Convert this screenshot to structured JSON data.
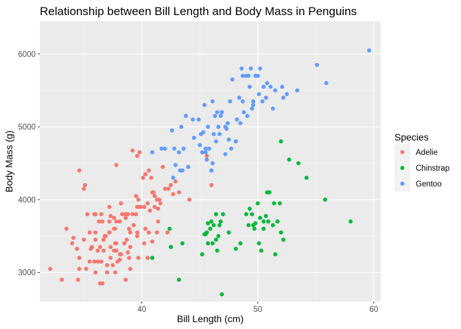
{
  "chart_data": {
    "type": "scatter",
    "title": "Relationship between Bill Length and Body Mass in Penguins",
    "xlabel": "Bill Length (cm)",
    "ylabel": "Body Mass (g)",
    "xlim": [
      31.2,
      60.6
    ],
    "ylim": [
      2600,
      6450
    ],
    "x_ticks": [
      40,
      50,
      60
    ],
    "y_ticks": [
      3000,
      4000,
      5000,
      6000
    ],
    "grid": true,
    "background": "#EBEBEB",
    "legend": {
      "title": "Species",
      "position": "right"
    },
    "series": [
      {
        "name": "Adelie",
        "color": "#F8766D",
        "points": [
          [
            32.1,
            3050
          ],
          [
            33.1,
            2900
          ],
          [
            33.5,
            3600
          ],
          [
            34.0,
            3400
          ],
          [
            34.1,
            3475
          ],
          [
            34.4,
            3325
          ],
          [
            34.5,
            2900
          ],
          [
            34.6,
            4400
          ],
          [
            34.6,
            3200
          ],
          [
            34.6,
            3050
          ],
          [
            35.0,
            3450
          ],
          [
            35.0,
            4150
          ],
          [
            35.1,
            4200
          ],
          [
            35.2,
            3050
          ],
          [
            35.3,
            3800
          ],
          [
            35.5,
            3150
          ],
          [
            35.5,
            3550
          ],
          [
            35.6,
            3325
          ],
          [
            35.7,
            3350
          ],
          [
            35.9,
            3800
          ],
          [
            35.9,
            3150
          ],
          [
            36.0,
            3450
          ],
          [
            36.0,
            3800
          ],
          [
            36.0,
            3000
          ],
          [
            36.0,
            3550
          ],
          [
            36.2,
            3300
          ],
          [
            36.2,
            3150
          ],
          [
            36.3,
            3700
          ],
          [
            36.4,
            2850
          ],
          [
            36.4,
            3350
          ],
          [
            36.5,
            3800
          ],
          [
            36.5,
            3150
          ],
          [
            36.6,
            2850
          ],
          [
            36.6,
            3700
          ],
          [
            36.7,
            3450
          ],
          [
            36.7,
            3300
          ],
          [
            36.8,
            3500
          ],
          [
            36.9,
            3500
          ],
          [
            37.0,
            3100
          ],
          [
            37.0,
            3000
          ],
          [
            37.2,
            3550
          ],
          [
            37.2,
            3700
          ],
          [
            37.2,
            3900
          ],
          [
            37.3,
            3775
          ],
          [
            37.3,
            3200
          ],
          [
            37.3,
            3350
          ],
          [
            37.5,
            3100
          ],
          [
            37.6,
            3600
          ],
          [
            37.6,
            3300
          ],
          [
            37.6,
            3750
          ],
          [
            37.7,
            3600
          ],
          [
            37.7,
            3000
          ],
          [
            37.7,
            3400
          ],
          [
            37.8,
            3700
          ],
          [
            37.8,
            4475
          ],
          [
            37.8,
            3400
          ],
          [
            37.8,
            3300
          ],
          [
            37.9,
            3150
          ],
          [
            38.1,
            3700
          ],
          [
            38.1,
            3175
          ],
          [
            38.1,
            3250
          ],
          [
            38.2,
            3950
          ],
          [
            38.2,
            3250
          ],
          [
            38.3,
            3800
          ],
          [
            38.5,
            3400
          ],
          [
            38.6,
            3800
          ],
          [
            38.6,
            3750
          ],
          [
            38.6,
            2900
          ],
          [
            38.7,
            3450
          ],
          [
            38.8,
            3800
          ],
          [
            38.8,
            3275
          ],
          [
            38.9,
            3600
          ],
          [
            38.9,
            3200
          ],
          [
            39.0,
            3550
          ],
          [
            39.0,
            3350
          ],
          [
            39.0,
            3050
          ],
          [
            39.2,
            4675
          ],
          [
            39.2,
            3800
          ],
          [
            39.3,
            3650
          ],
          [
            39.5,
            4050
          ],
          [
            39.5,
            3800
          ],
          [
            39.6,
            3500
          ],
          [
            39.6,
            3900
          ],
          [
            39.6,
            4600
          ],
          [
            39.6,
            3550
          ],
          [
            39.7,
            3900
          ],
          [
            39.7,
            4000
          ],
          [
            39.7,
            3200
          ],
          [
            39.8,
            4650
          ],
          [
            39.9,
            3900
          ],
          [
            40.1,
            4300
          ],
          [
            40.2,
            3400
          ],
          [
            40.2,
            3900
          ],
          [
            40.3,
            3600
          ],
          [
            40.3,
            4350
          ],
          [
            40.5,
            3950
          ],
          [
            40.5,
            3200
          ],
          [
            40.6,
            3550
          ],
          [
            40.6,
            4400
          ],
          [
            40.7,
            3850
          ],
          [
            40.8,
            4300
          ],
          [
            40.9,
            4100
          ],
          [
            40.9,
            3425
          ],
          [
            41.0,
            4100
          ],
          [
            41.1,
            4050
          ],
          [
            41.1,
            3900
          ],
          [
            41.3,
            3550
          ],
          [
            41.3,
            4000
          ],
          [
            41.4,
            3700
          ],
          [
            41.4,
            3875
          ],
          [
            41.5,
            4000
          ],
          [
            41.6,
            3950
          ],
          [
            41.8,
            4450
          ],
          [
            42.0,
            4150
          ],
          [
            42.2,
            3550
          ],
          [
            42.3,
            4150
          ],
          [
            42.5,
            4200
          ],
          [
            42.7,
            4075
          ],
          [
            42.9,
            4250
          ],
          [
            43.2,
            4100
          ],
          [
            44.1,
            4000
          ],
          [
            45.6,
            4600
          ],
          [
            46.0,
            4200
          ]
        ]
      },
      {
        "name": "Chinstrap",
        "color": "#00BA38",
        "points": [
          [
            40.9,
            3200
          ],
          [
            42.4,
            3600
          ],
          [
            42.5,
            3350
          ],
          [
            42.5,
            3350
          ],
          [
            43.2,
            2900
          ],
          [
            43.5,
            3400
          ],
          [
            45.2,
            3250
          ],
          [
            45.4,
            3525
          ],
          [
            45.5,
            3525
          ],
          [
            45.6,
            3550
          ],
          [
            45.7,
            3400
          ],
          [
            45.7,
            3675
          ],
          [
            45.9,
            3600
          ],
          [
            46.0,
            3700
          ],
          [
            46.1,
            3400
          ],
          [
            46.2,
            3650
          ],
          [
            46.4,
            3450
          ],
          [
            46.4,
            3800
          ],
          [
            46.5,
            3300
          ],
          [
            46.6,
            3500
          ],
          [
            46.7,
            3650
          ],
          [
            46.8,
            3700
          ],
          [
            46.9,
            2700
          ],
          [
            47.0,
            3800
          ],
          [
            47.5,
            3550
          ],
          [
            48.1,
            3325
          ],
          [
            48.5,
            3400
          ],
          [
            49.0,
            3800
          ],
          [
            49.2,
            3650
          ],
          [
            49.3,
            3875
          ],
          [
            49.5,
            3800
          ],
          [
            49.6,
            3650
          ],
          [
            49.7,
            3600
          ],
          [
            49.8,
            3675
          ],
          [
            50.0,
            3950
          ],
          [
            50.1,
            3400
          ],
          [
            50.2,
            3750
          ],
          [
            50.3,
            3300
          ],
          [
            50.5,
            3600
          ],
          [
            50.5,
            3700
          ],
          [
            50.7,
            3775
          ],
          [
            50.8,
            4100
          ],
          [
            50.9,
            3700
          ],
          [
            51.0,
            4100
          ],
          [
            51.3,
            3650
          ],
          [
            51.4,
            3950
          ],
          [
            51.5,
            3250
          ],
          [
            51.7,
            3700
          ],
          [
            51.9,
            3950
          ],
          [
            52.0,
            4800
          ],
          [
            52.0,
            3550
          ],
          [
            52.2,
            3450
          ],
          [
            52.7,
            4550
          ],
          [
            53.5,
            4500
          ],
          [
            54.2,
            4300
          ],
          [
            55.8,
            4000
          ],
          [
            58.0,
            3700
          ]
        ]
      },
      {
        "name": "Gentoo",
        "color": "#619CFF",
        "points": [
          [
            40.9,
            4650
          ],
          [
            41.7,
            4700
          ],
          [
            42.0,
            4700
          ],
          [
            42.6,
            4950
          ],
          [
            42.7,
            4300
          ],
          [
            42.8,
            4700
          ],
          [
            42.9,
            4475
          ],
          [
            43.2,
            4650
          ],
          [
            43.3,
            4400
          ],
          [
            43.4,
            5000
          ],
          [
            43.5,
            4400
          ],
          [
            43.6,
            4700
          ],
          [
            43.8,
            5150
          ],
          [
            44.0,
            4450
          ],
          [
            44.4,
            5100
          ],
          [
            44.5,
            4850
          ],
          [
            44.9,
            5100
          ],
          [
            45.0,
            4750
          ],
          [
            45.1,
            4900
          ],
          [
            45.2,
            4650
          ],
          [
            45.3,
            4925
          ],
          [
            45.4,
            5300
          ],
          [
            45.5,
            4650
          ],
          [
            45.5,
            4700
          ],
          [
            45.7,
            5000
          ],
          [
            45.8,
            4700
          ],
          [
            46.1,
            5350
          ],
          [
            46.2,
            4900
          ],
          [
            46.3,
            5150
          ],
          [
            46.4,
            4800
          ],
          [
            46.5,
            5200
          ],
          [
            46.6,
            5000
          ],
          [
            46.7,
            4900
          ],
          [
            46.8,
            5150
          ],
          [
            46.9,
            5200
          ],
          [
            47.2,
            5000
          ],
          [
            47.3,
            4975
          ],
          [
            47.4,
            5050
          ],
          [
            47.5,
            4825
          ],
          [
            47.6,
            5350
          ],
          [
            47.7,
            4700
          ],
          [
            47.8,
            5650
          ],
          [
            48.1,
            4800
          ],
          [
            48.2,
            5100
          ],
          [
            48.4,
            5400
          ],
          [
            48.5,
            5050
          ],
          [
            48.6,
            5800
          ],
          [
            48.7,
            5350
          ],
          [
            48.8,
            5200
          ],
          [
            49.0,
            5700
          ],
          [
            49.1,
            5150
          ],
          [
            49.2,
            5700
          ],
          [
            49.3,
            5550
          ],
          [
            49.4,
            5800
          ],
          [
            49.5,
            5250
          ],
          [
            49.6,
            5300
          ],
          [
            49.8,
            5700
          ],
          [
            50.0,
            5700
          ],
          [
            50.1,
            5450
          ],
          [
            50.2,
            5800
          ],
          [
            50.4,
            5350
          ],
          [
            50.5,
            5550
          ],
          [
            50.7,
            5400
          ],
          [
            50.8,
            5600
          ],
          [
            51.1,
            5550
          ],
          [
            51.3,
            5250
          ],
          [
            51.5,
            5500
          ],
          [
            52.1,
            5550
          ],
          [
            52.2,
            5400
          ],
          [
            52.5,
            5450
          ],
          [
            53.4,
            5500
          ],
          [
            55.1,
            5850
          ],
          [
            55.9,
            5600
          ],
          [
            59.6,
            6050
          ],
          [
            46.1,
            4500
          ],
          [
            46.0,
            4400
          ],
          [
            45.6,
            4550
          ],
          [
            47.2,
            4625
          ],
          [
            48.7,
            5700
          ],
          [
            49.6,
            5350
          ]
        ]
      }
    ]
  }
}
